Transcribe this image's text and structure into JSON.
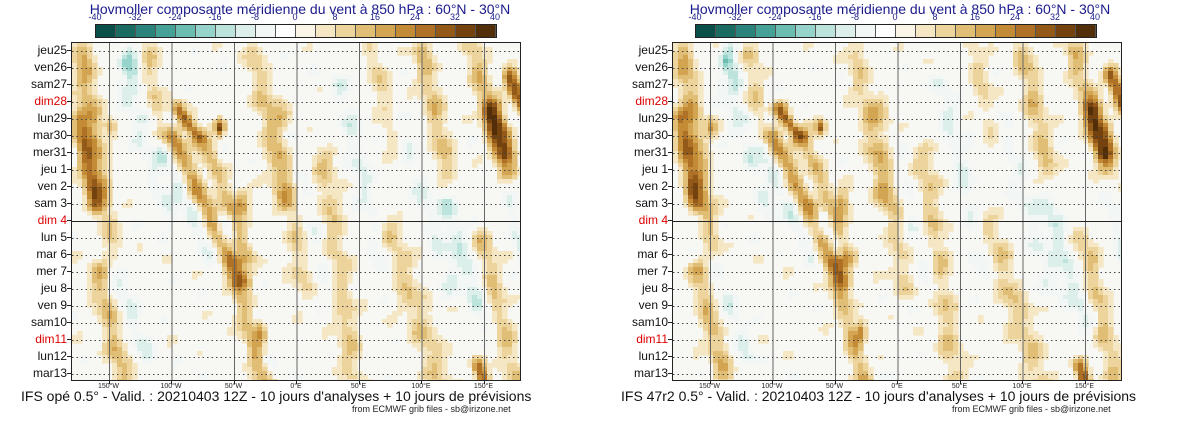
{
  "panels": [
    {
      "title": "Hovmoller composante méridienne du vent à 850 hPa : 60°N - 30°N",
      "caption": "IFS opé 0.5° - Valid. : 20210403 12Z - 10 jours d'analyses + 10 jours de prévisions",
      "credit": "from ECMWF grib files - sb@irizone.net"
    },
    {
      "title": "Hovmoller composante méridienne du vent à 850 hPa : 60°N - 30°N",
      "caption": "IFS 47r2 0.5° - Valid. : 20210403 12Z - 10 jours d'analyses + 10 jours de prévisions",
      "credit": "from ECMWF grib files - sb@irizone.net"
    }
  ],
  "chart_data": {
    "type": "heatmap",
    "variable": "v-wind 850 hPa (m/s)",
    "colorbar": {
      "ticks": [
        "-40",
        "-32",
        "-24",
        "-16",
        "-8",
        "0",
        "8",
        "16",
        "24",
        "32",
        "40"
      ],
      "colors": [
        "#0a4f4a",
        "#1b6b63",
        "#2b847b",
        "#46a197",
        "#6bbdb2",
        "#96d3ca",
        "#bde3dd",
        "#dcefeb",
        "#f2f7f6",
        "#ffffff",
        "#fbf5e8",
        "#f5e7c3",
        "#ecd49c",
        "#e0be76",
        "#d3a553",
        "#c48b37",
        "#ae7125",
        "#935918",
        "#73420f",
        "#532f09"
      ]
    },
    "y_dates": [
      {
        "label": "jeu25",
        "sunday": false
      },
      {
        "label": "ven26",
        "sunday": false
      },
      {
        "label": "sam27",
        "sunday": false
      },
      {
        "label": "dim28",
        "sunday": true
      },
      {
        "label": "lun29",
        "sunday": false
      },
      {
        "label": "mar30",
        "sunday": false
      },
      {
        "label": "mer31",
        "sunday": false
      },
      {
        "label": "jeu 1",
        "sunday": false
      },
      {
        "label": "ven 2",
        "sunday": false
      },
      {
        "label": "sam 3",
        "sunday": false
      },
      {
        "label": "dim 4",
        "sunday": true
      },
      {
        "label": "lun 5",
        "sunday": false
      },
      {
        "label": "mar 6",
        "sunday": false
      },
      {
        "label": "mer 7",
        "sunday": false
      },
      {
        "label": "jeu 8",
        "sunday": false
      },
      {
        "label": "ven 9",
        "sunday": false
      },
      {
        "label": "sam10",
        "sunday": false
      },
      {
        "label": "dim11",
        "sunday": true
      },
      {
        "label": "lun12",
        "sunday": false
      },
      {
        "label": "mar13",
        "sunday": false
      }
    ],
    "x_ticks": [
      {
        "label": "150°W",
        "lon": -150
      },
      {
        "label": "100°W",
        "lon": -100
      },
      {
        "label": "50°W",
        "lon": -50
      },
      {
        "label": "0°E",
        "lon": 0
      },
      {
        "label": "50°E",
        "lon": 50
      },
      {
        "label": "100°E",
        "lon": 100
      },
      {
        "label": "150°E",
        "lon": 150
      }
    ],
    "xlim": [
      -180,
      180
    ],
    "analysis_forecast_split": "dim 4",
    "positive_bands": [
      {
        "lon0": -172,
        "day0": 0.0,
        "lon1": -150,
        "day1": 12.0,
        "value": 16,
        "spread": 9
      },
      {
        "lon0": -175,
        "day0": 4.0,
        "lon1": -162,
        "day1": 9.0,
        "value": 20,
        "spread": 7
      },
      {
        "lon0": -160,
        "day0": 13.0,
        "lon1": -138,
        "day1": 19.5,
        "value": 14,
        "spread": 9
      },
      {
        "lon0": -118,
        "day0": 0.0,
        "lon1": -112,
        "day1": 5.0,
        "value": 10,
        "spread": 8
      },
      {
        "lon0": -95,
        "day0": 3.5,
        "lon1": -80,
        "day1": 5.0,
        "value": 26,
        "spread": 6
      },
      {
        "lon0": -100,
        "day0": 5.0,
        "lon1": -45,
        "day1": 13.5,
        "value": 20,
        "spread": 8
      },
      {
        "lon0": -75,
        "day0": 5.0,
        "lon1": -40,
        "day1": 12.0,
        "value": 14,
        "spread": 7
      },
      {
        "lon0": -50,
        "day0": 12.5,
        "lon1": -25,
        "day1": 19.5,
        "value": 20,
        "spread": 9
      },
      {
        "lon0": -35,
        "day0": 0.0,
        "lon1": -10,
        "day1": 9.0,
        "value": 10,
        "spread": 9
      },
      {
        "lon0": -15,
        "day0": 3.0,
        "lon1": 5,
        "day1": 14.0,
        "value": 9,
        "spread": 10
      },
      {
        "lon0": 20,
        "day0": 6.0,
        "lon1": 45,
        "day1": 19.0,
        "value": 11,
        "spread": 10
      },
      {
        "lon0": 60,
        "day0": 0.0,
        "lon1": 80,
        "day1": 6.0,
        "value": 9,
        "spread": 8
      },
      {
        "lon0": 70,
        "day0": 10.0,
        "lon1": 115,
        "day1": 19.5,
        "value": 11,
        "spread": 12
      },
      {
        "lon0": 100,
        "day0": 0.0,
        "lon1": 120,
        "day1": 7.0,
        "value": 13,
        "spread": 9
      },
      {
        "lon0": 140,
        "day0": 0.0,
        "lon1": 170,
        "day1": 7.0,
        "value": 14,
        "spread": 9
      },
      {
        "lon0": 155,
        "day0": 3.5,
        "lon1": 165,
        "day1": 6.0,
        "value": 26,
        "spread": 8
      },
      {
        "lon0": 170,
        "day0": 1.5,
        "lon1": 180,
        "day1": 3.0,
        "value": 30,
        "spread": 6
      },
      {
        "lon0": 148,
        "day0": 11.0,
        "lon1": 175,
        "day1": 19.5,
        "value": 12,
        "spread": 9
      },
      {
        "lon0": 145,
        "day0": 18.6,
        "lon1": 150,
        "day1": 19.5,
        "value": 26,
        "spread": 5
      }
    ],
    "negative_bands": [
      {
        "lon0": -135,
        "day0": 0.0,
        "lon1": -130,
        "day1": 2.0,
        "value": -14,
        "spread": 6
      },
      {
        "lon0": -140,
        "day0": 2.0,
        "lon1": -100,
        "day1": 10.0,
        "value": -7,
        "spread": 8
      },
      {
        "lon0": -120,
        "day0": 4.0,
        "lon1": -70,
        "day1": 12.0,
        "value": -9,
        "spread": 7
      },
      {
        "lon0": -160,
        "day0": 10.0,
        "lon1": -120,
        "day1": 18.0,
        "value": -8,
        "spread": 8
      },
      {
        "lon0": -60,
        "day0": 10.0,
        "lon1": -20,
        "day1": 19.0,
        "value": -10,
        "spread": 7
      },
      {
        "lon0": -5,
        "day0": 5.0,
        "lon1": 25,
        "day1": 14.0,
        "value": -7,
        "spread": 8
      },
      {
        "lon0": 35,
        "day0": 2.0,
        "lon1": 70,
        "day1": 13.0,
        "value": -8,
        "spread": 9
      },
      {
        "lon0": 80,
        "day0": 4.0,
        "lon1": 125,
        "day1": 14.0,
        "value": -7,
        "spread": 10
      },
      {
        "lon0": 120,
        "day0": 9.0,
        "lon1": 150,
        "day1": 16.0,
        "value": -10,
        "spread": 8
      },
      {
        "lon0": 170,
        "day0": 9.0,
        "lon1": 180,
        "day1": 12.0,
        "value": -8,
        "spread": 6
      }
    ],
    "cores": [
      {
        "lon": -62,
        "day": 4.5,
        "value": 32,
        "size": 4
      },
      {
        "lon": -45,
        "day": 9.0,
        "value": 22,
        "size": 7
      },
      {
        "lon": -30,
        "day": 16.5,
        "value": 24,
        "size": 5
      },
      {
        "lon": 163,
        "day": 5.0,
        "value": 30,
        "size": 6
      },
      {
        "lon": 176,
        "day": 2.3,
        "value": 30,
        "size": 5
      },
      {
        "lon": -150,
        "day": 4.5,
        "value": 20,
        "size": 5
      },
      {
        "lon": -138,
        "day": 0.7,
        "value": -18,
        "size": 4
      },
      {
        "lon": 148,
        "day": 19.3,
        "value": 30,
        "size": 4
      }
    ]
  }
}
